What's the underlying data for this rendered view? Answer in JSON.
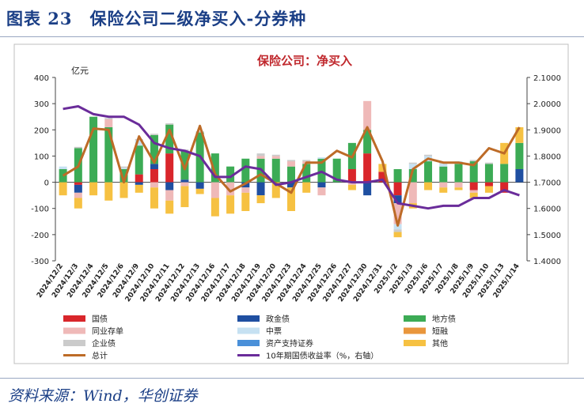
{
  "page_title": "图表 23　保险公司二级净买入-分券种",
  "source_note": "资料来源：Wind，华创证券",
  "chart_data": {
    "type": "bar",
    "title": "保险公司：净买入",
    "ylabel": "亿元",
    "ylim": [
      -300,
      400
    ],
    "yticks": [
      -300,
      -200,
      -100,
      0,
      100,
      200,
      300,
      400
    ],
    "y2lim": [
      1.4,
      2.1
    ],
    "y2ticks": [
      "1.4000",
      "1.5000",
      "1.6000",
      "1.7000",
      "1.8000",
      "1.9000",
      "2.0000",
      "2.1000"
    ],
    "categories": [
      "2024/12/2",
      "2024/12/3",
      "2024/12/4",
      "2024/12/5",
      "2024/12/6",
      "2024/12/9",
      "2024/12/10",
      "2024/12/11",
      "2024/12/12",
      "2024/12/13",
      "2024/12/16",
      "2024/12/17",
      "2024/12/18",
      "2024/12/19",
      "2024/12/20",
      "2024/12/23",
      "2024/12/24",
      "2024/12/25",
      "2024/12/26",
      "2024/12/27",
      "2024/12/30",
      "2024/12/31",
      "2025/1/2",
      "2025/1/3",
      "2025/1/6",
      "2025/1/7",
      "2025/1/8",
      "2025/1/9",
      "2025/1/10",
      "2025/1/13",
      "2025/1/14"
    ],
    "stacked_series": [
      {
        "name": "国债",
        "color": "#d9262b",
        "values": [
          0,
          -10,
          0,
          0,
          0,
          30,
          50,
          110,
          0,
          0,
          0,
          0,
          0,
          0,
          0,
          0,
          0,
          0,
          0,
          50,
          110,
          40,
          -50,
          0,
          0,
          0,
          0,
          -30,
          -15,
          -40,
          0
        ]
      },
      {
        "name": "政金债",
        "color": "#1f4fa1",
        "values": [
          0,
          -30,
          0,
          0,
          0,
          -10,
          20,
          -30,
          10,
          -25,
          0,
          0,
          -20,
          -50,
          0,
          -20,
          0,
          -20,
          0,
          0,
          -50,
          0,
          -30,
          0,
          0,
          0,
          0,
          0,
          0,
          0,
          50
        ]
      },
      {
        "name": "地方债",
        "color": "#3cab55",
        "values": [
          50,
          130,
          250,
          210,
          50,
          110,
          110,
          110,
          110,
          190,
          110,
          60,
          90,
          90,
          90,
          60,
          70,
          90,
          90,
          100,
          90,
          0,
          50,
          50,
          80,
          60,
          70,
          80,
          70,
          70,
          100
        ]
      },
      {
        "name": "同业存单",
        "color": "#efb9b8",
        "values": [
          0,
          -20,
          0,
          30,
          0,
          0,
          -20,
          -40,
          -15,
          0,
          -60,
          -50,
          -20,
          10,
          10,
          20,
          10,
          -30,
          0,
          -10,
          110,
          0,
          -80,
          -80,
          0,
          -20,
          -20,
          -10,
          0,
          0,
          0
        ]
      },
      {
        "name": "中票",
        "color": "#c6e1f2",
        "values": [
          10,
          0,
          0,
          0,
          5,
          20,
          0,
          0,
          0,
          0,
          0,
          0,
          0,
          0,
          0,
          0,
          0,
          5,
          0,
          0,
          0,
          0,
          -20,
          20,
          20,
          10,
          10,
          0,
          0,
          0,
          0
        ]
      },
      {
        "name": "短融",
        "color": "#e9963c",
        "values": [
          0,
          0,
          0,
          0,
          0,
          0,
          0,
          0,
          0,
          0,
          0,
          0,
          0,
          0,
          0,
          0,
          0,
          0,
          0,
          0,
          0,
          0,
          0,
          0,
          0,
          0,
          0,
          0,
          0,
          0,
          0
        ]
      },
      {
        "name": "企业债",
        "color": "#cbcbcb",
        "values": [
          0,
          5,
          0,
          5,
          5,
          5,
          5,
          5,
          5,
          5,
          0,
          0,
          0,
          10,
          5,
          5,
          5,
          0,
          0,
          0,
          0,
          0,
          -10,
          5,
          5,
          5,
          0,
          5,
          5,
          0,
          0
        ]
      },
      {
        "name": "资产支持证券",
        "color": "#4a90d9",
        "values": [
          0,
          0,
          0,
          0,
          0,
          0,
          0,
          0,
          0,
          0,
          0,
          0,
          0,
          0,
          0,
          0,
          0,
          0,
          0,
          0,
          0,
          0,
          0,
          0,
          0,
          0,
          0,
          0,
          0,
          0,
          0
        ]
      },
      {
        "name": "其他",
        "color": "#f6c142",
        "values": [
          -50,
          -40,
          -50,
          -70,
          -60,
          -30,
          -80,
          -50,
          -80,
          -20,
          -70,
          -70,
          -70,
          -30,
          -60,
          -90,
          -40,
          0,
          0,
          -20,
          0,
          30,
          -20,
          -20,
          -30,
          -20,
          -10,
          -20,
          -25,
          80,
          60
        ]
      }
    ],
    "line_series": [
      {
        "name": "总计",
        "color": "#bd6b27",
        "axis": "left",
        "values": [
          25,
          60,
          205,
          200,
          0,
          175,
          75,
          200,
          50,
          215,
          30,
          -35,
          -5,
          30,
          -5,
          -40,
          75,
          75,
          120,
          95,
          210,
          80,
          -165,
          50,
          90,
          75,
          75,
          65,
          130,
          110,
          210
        ]
      },
      {
        "name": "10年期国债收益率（%，右轴）",
        "color": "#6a2c9a",
        "axis": "right",
        "values": [
          1.98,
          1.99,
          1.96,
          1.95,
          1.95,
          1.92,
          1.85,
          1.83,
          1.82,
          1.8,
          1.72,
          1.72,
          1.76,
          1.75,
          1.69,
          1.7,
          1.72,
          1.74,
          1.71,
          1.7,
          1.7,
          1.71,
          1.62,
          1.61,
          1.6,
          1.61,
          1.61,
          1.64,
          1.64,
          1.67,
          1.65
        ]
      }
    ],
    "legend": [
      {
        "label": "国债",
        "color": "#d9262b",
        "kind": "box"
      },
      {
        "label": "政金债",
        "color": "#1f4fa1",
        "kind": "box"
      },
      {
        "label": "地方债",
        "color": "#3cab55",
        "kind": "box"
      },
      {
        "label": "同业存单",
        "color": "#efb9b8",
        "kind": "box"
      },
      {
        "label": "中票",
        "color": "#c6e1f2",
        "kind": "box"
      },
      {
        "label": "短融",
        "color": "#e9963c",
        "kind": "box"
      },
      {
        "label": "企业债",
        "color": "#cbcbcb",
        "kind": "box"
      },
      {
        "label": "资产支持证券",
        "color": "#4a90d9",
        "kind": "box"
      },
      {
        "label": "其他",
        "color": "#f6c142",
        "kind": "box"
      },
      {
        "label": "总计",
        "color": "#bd6b27",
        "kind": "line"
      },
      {
        "label": "10年期国债收益率（%，右轴）",
        "color": "#6a2c9a",
        "kind": "line"
      }
    ],
    "legend_position": "bottom",
    "grid": false
  }
}
